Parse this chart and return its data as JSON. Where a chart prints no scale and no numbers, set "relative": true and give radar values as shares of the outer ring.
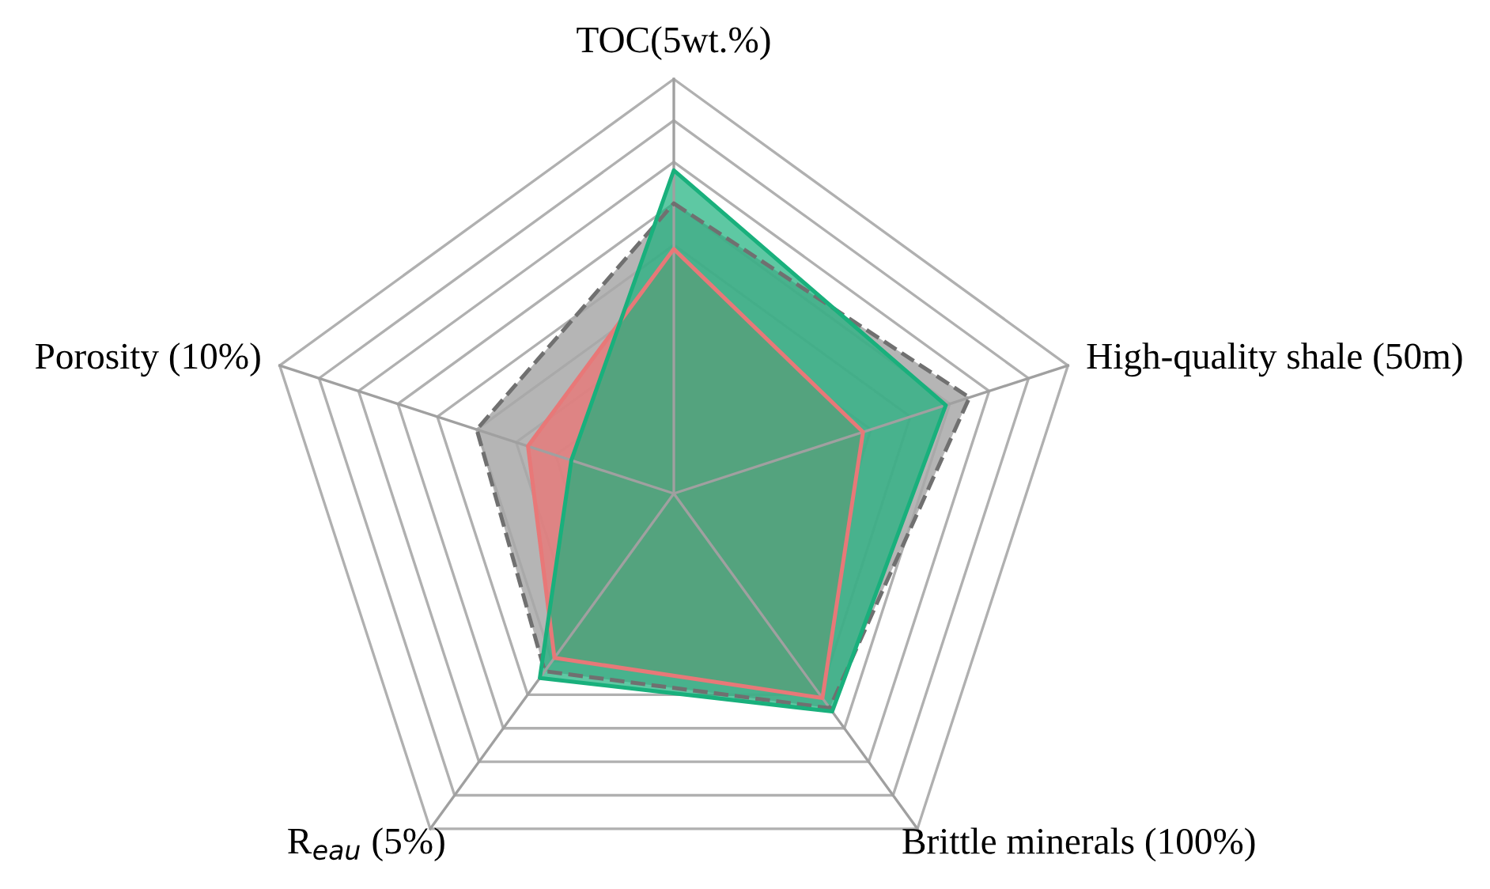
{
  "chart_data": {
    "type": "radar",
    "relative": true,
    "grid": true,
    "categories": [
      "TOC(5wt.%)",
      "High-quality shale (50m)",
      "Brittle minerals (100%)",
      "R$_{eau}$ (5%)",
      "Porosity (10%)"
    ],
    "series": [
      {
        "color": "#a8a8a8",
        "line_style": "dashed",
        "values": [
          0.7,
          0.75,
          0.64,
          0.53,
          0.5
        ]
      },
      {
        "color": "#e87878",
        "line_style": "solid",
        "values": [
          0.59,
          0.48,
          0.61,
          0.49,
          0.37
        ]
      },
      {
        "color": "#19b07c",
        "line_style": "solid",
        "values": [
          0.78,
          0.69,
          0.65,
          0.55,
          0.26
        ]
      }
    ]
  }
}
